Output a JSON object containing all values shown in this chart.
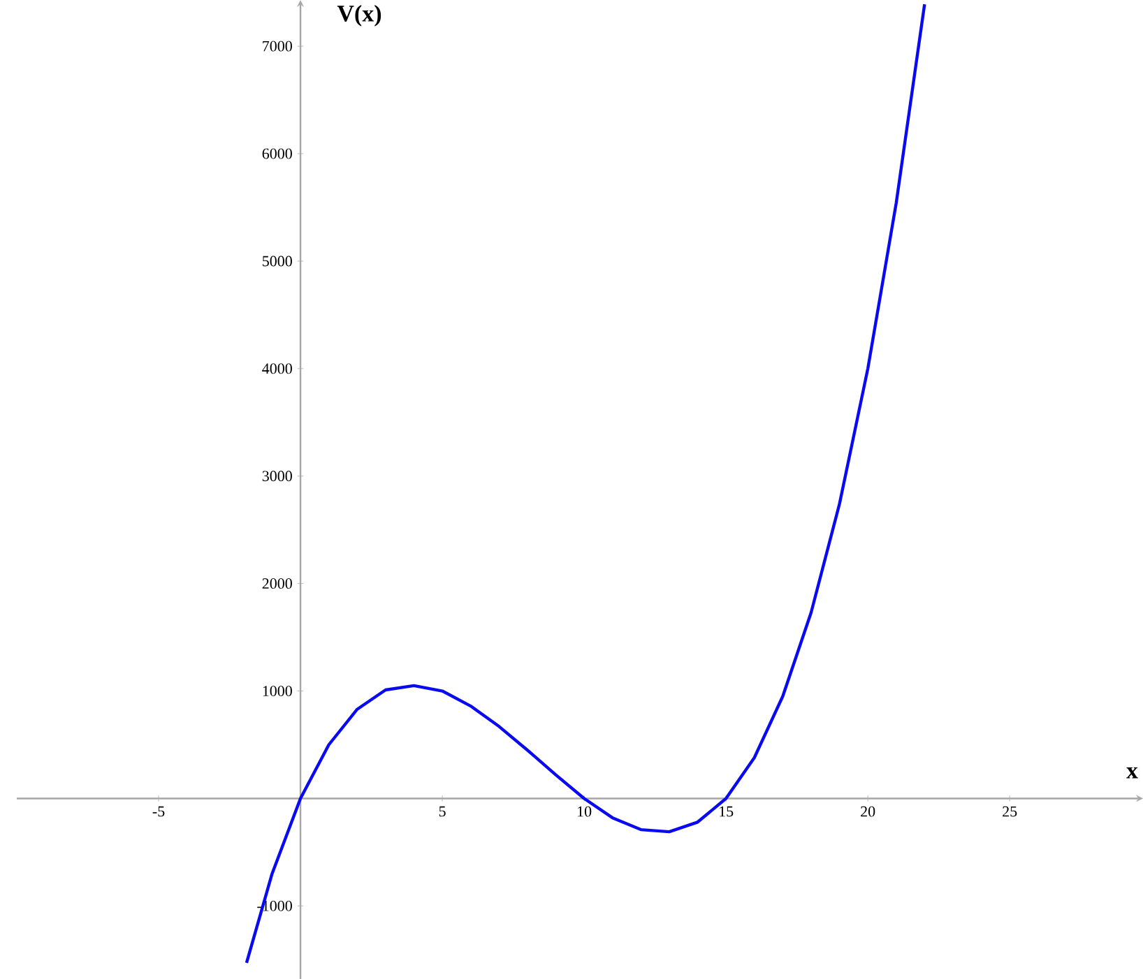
{
  "chart_data": {
    "type": "line",
    "xlabel": "x",
    "ylabel": "V(x)",
    "xlim": [
      -10,
      29.7
    ],
    "ylim": [
      -1680,
      7430
    ],
    "xticks": [
      -5,
      5,
      10,
      15,
      20,
      25
    ],
    "yticks": [
      -1000,
      1000,
      2000,
      3000,
      4000,
      5000,
      6000,
      7000
    ],
    "grid": false,
    "marker": "none",
    "line_style": "solid",
    "series": [
      {
        "color": "#0a0af0",
        "x": [
          -1.9,
          -1,
          0,
          1,
          2,
          3,
          4,
          5,
          6,
          7,
          8,
          9,
          10,
          11,
          12,
          13,
          14,
          15,
          16,
          17,
          18,
          19,
          20,
          21,
          22
        ],
        "values": [
          -1530,
          -700,
          0,
          500,
          830,
          1010,
          1050,
          1000,
          860,
          670,
          450,
          220,
          0,
          -180,
          -290,
          -310,
          -220,
          0,
          380,
          950,
          1730,
          2740,
          4000,
          5540,
          7390
        ]
      }
    ]
  }
}
